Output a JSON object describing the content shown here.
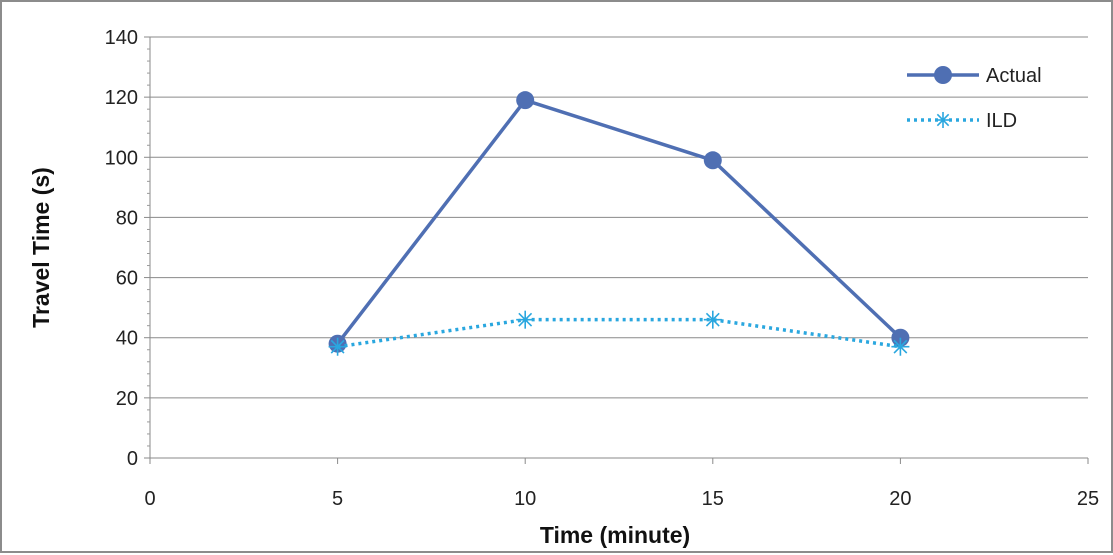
{
  "chart_data": {
    "type": "line",
    "title": "",
    "xlabel": "Time (minute)",
    "ylabel": "Travel Time (s)",
    "xlim": [
      0,
      25
    ],
    "ylim": [
      0,
      140
    ],
    "x_ticks": [
      0,
      5,
      10,
      15,
      20,
      25
    ],
    "y_ticks": [
      0,
      20,
      40,
      60,
      80,
      100,
      120,
      140
    ],
    "grid": "horizontal",
    "legend_position": "top-right",
    "series": [
      {
        "name": "Actual",
        "x": [
          5,
          10,
          15,
          20
        ],
        "values": [
          38,
          119,
          99,
          40
        ],
        "color": "#4f6fb3",
        "line_style": "solid",
        "marker": "circle"
      },
      {
        "name": "ILD",
        "x": [
          5,
          10,
          15,
          20
        ],
        "values": [
          37,
          46,
          46,
          37
        ],
        "color": "#2aa7df",
        "line_style": "dotted",
        "marker": "asterisk"
      }
    ]
  }
}
